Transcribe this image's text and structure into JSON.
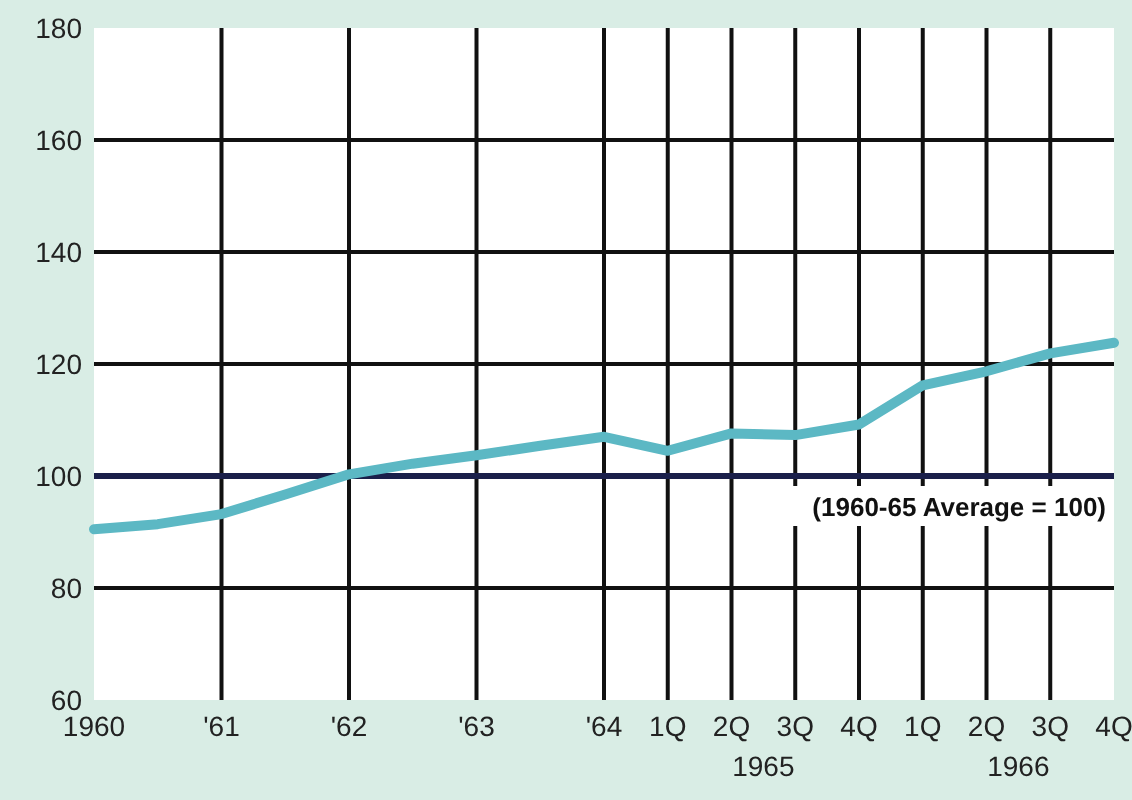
{
  "chart_data": {
    "type": "line",
    "categories": [
      "1960",
      null,
      "'61",
      null,
      "'62",
      null,
      "'63",
      null,
      "'64",
      "1Q",
      "2Q",
      "3Q",
      "4Q",
      "1Q",
      "2Q",
      "3Q",
      "4Q"
    ],
    "series": [
      {
        "color": "#5cb8c4",
        "values": [
          90.5,
          91.4,
          93.2,
          96.7,
          100.3,
          102.2,
          103.7,
          105.4,
          107,
          104.5,
          107.6,
          107.3,
          109.2,
          116.2,
          118.7,
          121.9,
          123.8
        ]
      }
    ],
    "ylim": [
      60,
      180
    ],
    "yticks": [
      60,
      80,
      100,
      120,
      140,
      160,
      180
    ],
    "grid": true,
    "marker": "none",
    "line_style": "solid",
    "ref_lines": [
      {
        "axis": "y",
        "value": 100,
        "label": "(1960-65 Average = 100)",
        "color": "#1a1f4a"
      }
    ],
    "annotations": [
      "1965",
      "1966"
    ]
  }
}
